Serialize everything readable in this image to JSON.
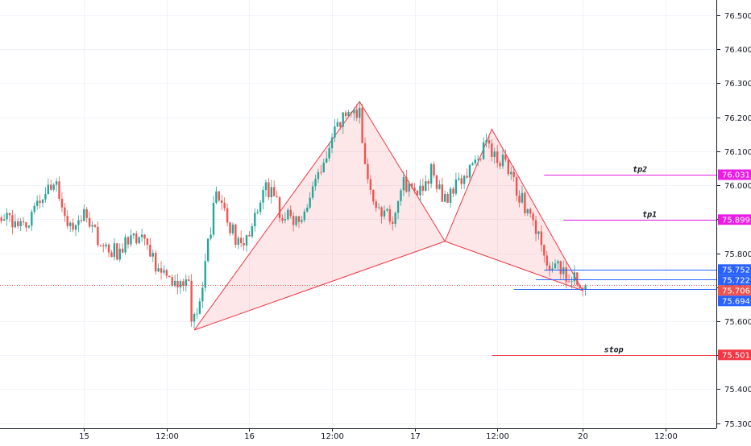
{
  "chart_data": {
    "type": "candlestick",
    "title": "",
    "xlabel": "",
    "ylabel": "",
    "ylim": [
      75.285,
      76.545
    ],
    "grid": true,
    "colors": {
      "up": "#26a69a",
      "down": "#ef5350",
      "pattern": "#f23645",
      "pattern_fill": "#f236451f",
      "target": "#e91ee3",
      "entry": "#2962ff",
      "stop": "#f23645",
      "last": "#ef5350",
      "grid": "#f0f3fa",
      "text": "#131722"
    },
    "x_ticks": [
      {
        "label": "15",
        "bar": 30
      },
      {
        "label": "12:00",
        "bar": 60
      },
      {
        "label": "16",
        "bar": 90
      },
      {
        "label": "12:00",
        "bar": 120
      },
      {
        "label": "17",
        "bar": 150
      },
      {
        "label": "12:00",
        "bar": 180
      },
      {
        "label": "20",
        "bar": 211
      },
      {
        "label": "12:00",
        "bar": 241
      }
    ],
    "y_ticks": [
      "75.300",
      "75.400",
      "75.500",
      "75.600",
      "75.700",
      "75.800",
      "75.900",
      "76.000",
      "76.100",
      "76.200",
      "76.300",
      "76.400",
      "76.500"
    ],
    "bar_count": 260,
    "last_bar": 212,
    "anchors": [
      [
        0,
        75.905
      ],
      [
        8,
        75.88
      ],
      [
        14,
        75.95
      ],
      [
        20,
        76.01
      ],
      [
        24,
        75.87
      ],
      [
        30,
        75.905
      ],
      [
        36,
        75.83
      ],
      [
        42,
        75.8
      ],
      [
        48,
        75.85
      ],
      [
        52,
        75.865
      ],
      [
        56,
        75.76
      ],
      [
        62,
        75.7
      ],
      [
        68,
        75.72
      ],
      [
        69,
        75.575
      ],
      [
        72,
        75.65
      ],
      [
        78,
        75.99
      ],
      [
        82,
        75.89
      ],
      [
        86,
        75.83
      ],
      [
        90,
        75.86
      ],
      [
        96,
        76.0
      ],
      [
        102,
        75.91
      ],
      [
        110,
        75.9
      ],
      [
        116,
        76.05
      ],
      [
        122,
        76.17
      ],
      [
        126,
        76.21
      ],
      [
        130,
        76.22
      ],
      [
        133,
        76.0
      ],
      [
        136,
        75.92
      ],
      [
        142,
        75.9
      ],
      [
        146,
        76.0
      ],
      [
        152,
        75.99
      ],
      [
        156,
        76.04
      ],
      [
        160,
        75.96
      ],
      [
        166,
        76.0
      ],
      [
        172,
        76.06
      ],
      [
        176,
        76.14
      ],
      [
        178,
        76.1
      ],
      [
        184,
        76.05
      ],
      [
        188,
        75.97
      ],
      [
        194,
        75.88
      ],
      [
        198,
        75.775
      ],
      [
        204,
        75.745
      ],
      [
        208,
        75.73
      ],
      [
        212,
        75.706
      ]
    ],
    "pattern": {
      "X": {
        "bar": 70,
        "price": 75.574
      },
      "A": {
        "bar": 130,
        "price": 76.246
      },
      "B": {
        "bar": 161,
        "price": 75.835
      },
      "C": {
        "bar": 178,
        "price": 76.165
      },
      "D": {
        "bar": 211,
        "price": 75.69
      }
    },
    "levels": [
      {
        "name": "tp2",
        "price": 76.031,
        "label": "76.031",
        "start_bar": 197,
        "kind": "target"
      },
      {
        "name": "tp1",
        "price": 75.899,
        "label": "75.899",
        "start_bar": 204,
        "kind": "target"
      },
      {
        "name": "",
        "price": 75.752,
        "label": "75.752",
        "start_bar": 197,
        "kind": "entry"
      },
      {
        "name": "",
        "price": 75.722,
        "label": "75.722",
        "start_bar": 194,
        "kind": "entry"
      },
      {
        "name": "",
        "price": 75.694,
        "label": "75.694",
        "start_bar": 186,
        "kind": "entry"
      },
      {
        "name": "stop",
        "price": 75.501,
        "label": "75.501",
        "start_bar": 178,
        "kind": "stop"
      }
    ],
    "last_price": {
      "price": 75.706,
      "label": "75.706"
    }
  }
}
